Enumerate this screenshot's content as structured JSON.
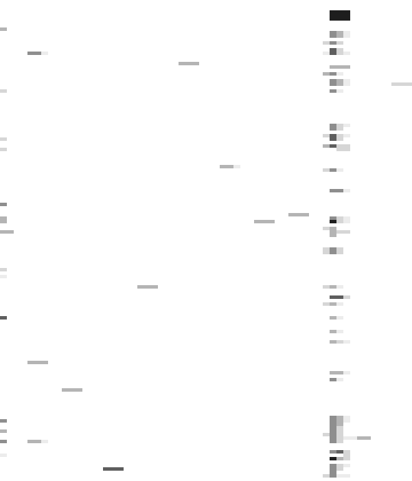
{
  "screen": {
    "description_note": "",
    "background_color": "#ffffff"
  },
  "palette": {
    "faint": "#ececec",
    "light": "#d6d6d6",
    "mid": "#b4b4b4",
    "dark": "#8e8e8e",
    "deep": "#5e5e5e",
    "black": "#1e1e1e"
  }
}
